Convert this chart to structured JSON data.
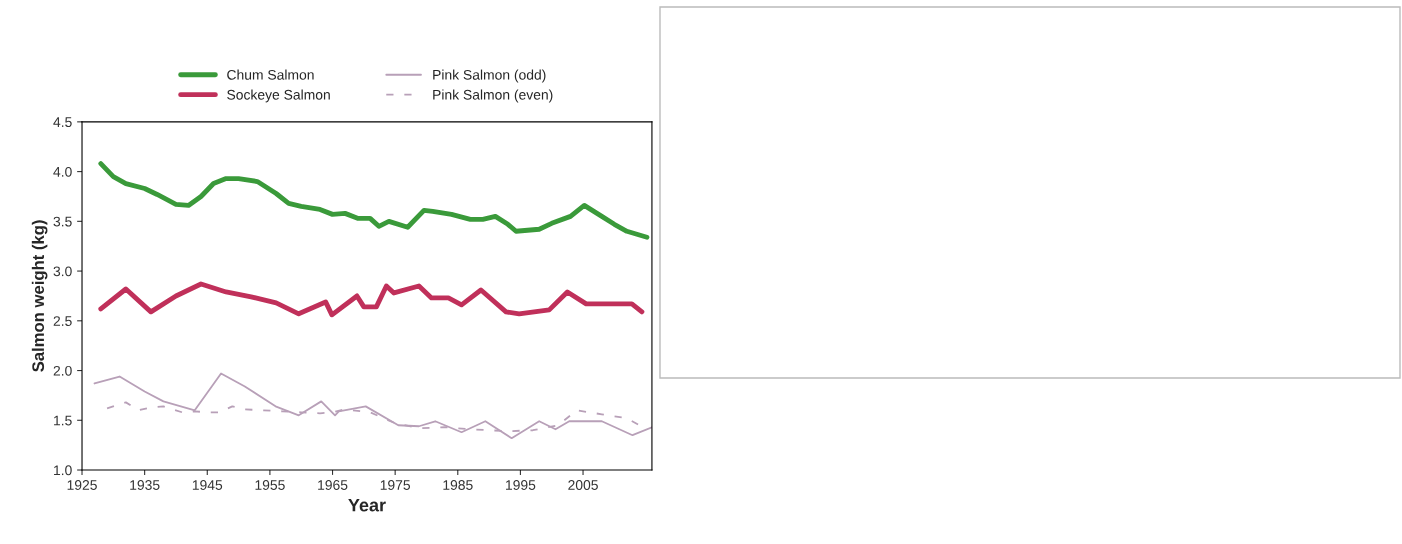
{
  "chart_data": {
    "type": "line",
    "xlabel": "Year",
    "ylabel": "Salmon weight (kg)",
    "xlim": [
      1925,
      2016
    ],
    "xticks": [
      1925,
      1935,
      1945,
      1955,
      1965,
      1975,
      1985,
      1995,
      2005
    ],
    "ylim": [
      1.0,
      4.5
    ],
    "yticks": [
      {
        "value": 1.0,
        "label": "1.0"
      },
      {
        "value": 1.5,
        "label": "1.5"
      },
      {
        "value": 2.0,
        "label": "2.0"
      },
      {
        "value": 2.5,
        "label": "2.5"
      },
      {
        "value": 3.0,
        "label": "3.0"
      },
      {
        "value": 3.5,
        "label": "3.5"
      },
      {
        "value": 4.0,
        "label": "4.0"
      },
      {
        "value": 4.5,
        "label": "4.5"
      }
    ],
    "grid": false,
    "legend": "top",
    "marker": "none",
    "series": [
      {
        "name": "Chum Salmon",
        "color": "#3a9a3a",
        "line_style": "solid",
        "x": [
          1928,
          1930,
          1932,
          1935,
          1937,
          1940,
          1942,
          1944,
          1946,
          1948,
          1950,
          1953,
          1956,
          1958,
          1960,
          1963,
          1965,
          1967,
          1969,
          1971,
          1972.4,
          1974,
          1977,
          1979.6,
          1981,
          1984,
          1987,
          1989,
          1991,
          1993,
          1994.3,
          1998,
          2000,
          2003,
          2005.2,
          2008,
          2010,
          2012,
          2015.2
        ],
        "values": [
          4.08,
          3.95,
          3.88,
          3.83,
          3.77,
          3.67,
          3.66,
          3.75,
          3.88,
          3.93,
          3.93,
          3.9,
          3.78,
          3.68,
          3.65,
          3.62,
          3.57,
          3.58,
          3.53,
          3.53,
          3.45,
          3.5,
          3.44,
          3.61,
          3.6,
          3.57,
          3.52,
          3.52,
          3.55,
          3.47,
          3.4,
          3.42,
          3.48,
          3.55,
          3.66,
          3.55,
          3.47,
          3.4,
          3.34
        ]
      },
      {
        "name": "Sockeye Salmon",
        "color": "#c0305a",
        "line_style": "solid",
        "x": [
          1928,
          1932,
          1936,
          1940,
          1944,
          1948,
          1952,
          1956,
          1959.6,
          1963.9,
          1964.9,
          1968.9,
          1970,
          1972,
          1973.6,
          1974.8,
          1978.8,
          1980.8,
          1983.5,
          1985.6,
          1988.7,
          1992.7,
          1994.8,
          1999.6,
          2002.5,
          2005.5,
          2012.8,
          2014.4
        ],
        "values": [
          2.62,
          2.82,
          2.59,
          2.75,
          2.87,
          2.79,
          2.74,
          2.68,
          2.57,
          2.69,
          2.56,
          2.75,
          2.64,
          2.64,
          2.85,
          2.78,
          2.85,
          2.73,
          2.73,
          2.66,
          2.81,
          2.59,
          2.57,
          2.61,
          2.79,
          2.67,
          2.67,
          2.59
        ]
      },
      {
        "name": "Pink Salmon (odd)",
        "color": "#b8a0b8",
        "line_style": "solid",
        "x": [
          1927,
          1931,
          1935,
          1938,
          1943,
          1947.2,
          1951,
          1955.9,
          1959.6,
          1963.2,
          1965.4,
          1966,
          1970.3,
          1975.5,
          1978.8,
          1981.4,
          1985.6,
          1989.4,
          1993.6,
          1998,
          2000.6,
          2002.8,
          2008,
          2012.9,
          2016
        ],
        "values": [
          1.87,
          1.94,
          1.79,
          1.69,
          1.6,
          1.97,
          1.84,
          1.64,
          1.55,
          1.69,
          1.55,
          1.59,
          1.64,
          1.45,
          1.44,
          1.49,
          1.38,
          1.49,
          1.32,
          1.49,
          1.41,
          1.49,
          1.49,
          1.35,
          1.43
        ]
      },
      {
        "name": "Pink Salmon (even)",
        "color": "#b8a0b8",
        "line_style": "dashed",
        "x": [
          1929,
          1932,
          1934,
          1936,
          1938,
          1941,
          1943,
          1945,
          1947,
          1949,
          1951,
          1954,
          1957,
          1960,
          1963,
          1965,
          1967,
          1971,
          1975,
          1979,
          1983,
          1987,
          1993,
          1997,
          2001,
          2004,
          2006,
          2008,
          2010,
          2012,
          2014
        ],
        "values": [
          1.62,
          1.68,
          1.6,
          1.63,
          1.64,
          1.58,
          1.59,
          1.58,
          1.58,
          1.64,
          1.61,
          1.6,
          1.59,
          1.58,
          1.57,
          1.58,
          1.61,
          1.58,
          1.47,
          1.42,
          1.43,
          1.41,
          1.39,
          1.4,
          1.45,
          1.6,
          1.58,
          1.56,
          1.54,
          1.52,
          1.45
        ]
      }
    ]
  }
}
